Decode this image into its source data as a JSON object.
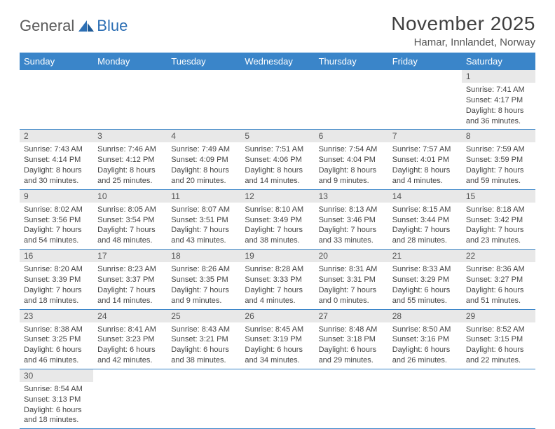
{
  "logo": {
    "general": "General",
    "blue": "Blue"
  },
  "title": "November 2025",
  "subtitle": "Hamar, Innlandet, Norway",
  "colors": {
    "header_bg": "#3a85c9",
    "header_fg": "#ffffff",
    "daynum_bg": "#e8e8e8",
    "rule": "#3a85c9",
    "logo_general": "#5b5b5b",
    "logo_blue": "#2d6fb4"
  },
  "weekdays": [
    "Sunday",
    "Monday",
    "Tuesday",
    "Wednesday",
    "Thursday",
    "Friday",
    "Saturday"
  ],
  "first_weekday_index": 6,
  "days": [
    {
      "n": 1,
      "sunrise": "7:41 AM",
      "sunset": "4:17 PM",
      "daylight": "8 hours and 36 minutes."
    },
    {
      "n": 2,
      "sunrise": "7:43 AM",
      "sunset": "4:14 PM",
      "daylight": "8 hours and 30 minutes."
    },
    {
      "n": 3,
      "sunrise": "7:46 AM",
      "sunset": "4:12 PM",
      "daylight": "8 hours and 25 minutes."
    },
    {
      "n": 4,
      "sunrise": "7:49 AM",
      "sunset": "4:09 PM",
      "daylight": "8 hours and 20 minutes."
    },
    {
      "n": 5,
      "sunrise": "7:51 AM",
      "sunset": "4:06 PM",
      "daylight": "8 hours and 14 minutes."
    },
    {
      "n": 6,
      "sunrise": "7:54 AM",
      "sunset": "4:04 PM",
      "daylight": "8 hours and 9 minutes."
    },
    {
      "n": 7,
      "sunrise": "7:57 AM",
      "sunset": "4:01 PM",
      "daylight": "8 hours and 4 minutes."
    },
    {
      "n": 8,
      "sunrise": "7:59 AM",
      "sunset": "3:59 PM",
      "daylight": "7 hours and 59 minutes."
    },
    {
      "n": 9,
      "sunrise": "8:02 AM",
      "sunset": "3:56 PM",
      "daylight": "7 hours and 54 minutes."
    },
    {
      "n": 10,
      "sunrise": "8:05 AM",
      "sunset": "3:54 PM",
      "daylight": "7 hours and 48 minutes."
    },
    {
      "n": 11,
      "sunrise": "8:07 AM",
      "sunset": "3:51 PM",
      "daylight": "7 hours and 43 minutes."
    },
    {
      "n": 12,
      "sunrise": "8:10 AM",
      "sunset": "3:49 PM",
      "daylight": "7 hours and 38 minutes."
    },
    {
      "n": 13,
      "sunrise": "8:13 AM",
      "sunset": "3:46 PM",
      "daylight": "7 hours and 33 minutes."
    },
    {
      "n": 14,
      "sunrise": "8:15 AM",
      "sunset": "3:44 PM",
      "daylight": "7 hours and 28 minutes."
    },
    {
      "n": 15,
      "sunrise": "8:18 AM",
      "sunset": "3:42 PM",
      "daylight": "7 hours and 23 minutes."
    },
    {
      "n": 16,
      "sunrise": "8:20 AM",
      "sunset": "3:39 PM",
      "daylight": "7 hours and 18 minutes."
    },
    {
      "n": 17,
      "sunrise": "8:23 AM",
      "sunset": "3:37 PM",
      "daylight": "7 hours and 14 minutes."
    },
    {
      "n": 18,
      "sunrise": "8:26 AM",
      "sunset": "3:35 PM",
      "daylight": "7 hours and 9 minutes."
    },
    {
      "n": 19,
      "sunrise": "8:28 AM",
      "sunset": "3:33 PM",
      "daylight": "7 hours and 4 minutes."
    },
    {
      "n": 20,
      "sunrise": "8:31 AM",
      "sunset": "3:31 PM",
      "daylight": "7 hours and 0 minutes."
    },
    {
      "n": 21,
      "sunrise": "8:33 AM",
      "sunset": "3:29 PM",
      "daylight": "6 hours and 55 minutes."
    },
    {
      "n": 22,
      "sunrise": "8:36 AM",
      "sunset": "3:27 PM",
      "daylight": "6 hours and 51 minutes."
    },
    {
      "n": 23,
      "sunrise": "8:38 AM",
      "sunset": "3:25 PM",
      "daylight": "6 hours and 46 minutes."
    },
    {
      "n": 24,
      "sunrise": "8:41 AM",
      "sunset": "3:23 PM",
      "daylight": "6 hours and 42 minutes."
    },
    {
      "n": 25,
      "sunrise": "8:43 AM",
      "sunset": "3:21 PM",
      "daylight": "6 hours and 38 minutes."
    },
    {
      "n": 26,
      "sunrise": "8:45 AM",
      "sunset": "3:19 PM",
      "daylight": "6 hours and 34 minutes."
    },
    {
      "n": 27,
      "sunrise": "8:48 AM",
      "sunset": "3:18 PM",
      "daylight": "6 hours and 29 minutes."
    },
    {
      "n": 28,
      "sunrise": "8:50 AM",
      "sunset": "3:16 PM",
      "daylight": "6 hours and 26 minutes."
    },
    {
      "n": 29,
      "sunrise": "8:52 AM",
      "sunset": "3:15 PM",
      "daylight": "6 hours and 22 minutes."
    },
    {
      "n": 30,
      "sunrise": "8:54 AM",
      "sunset": "3:13 PM",
      "daylight": "6 hours and 18 minutes."
    }
  ],
  "labels": {
    "sunrise": "Sunrise:",
    "sunset": "Sunset:",
    "daylight": "Daylight:"
  }
}
